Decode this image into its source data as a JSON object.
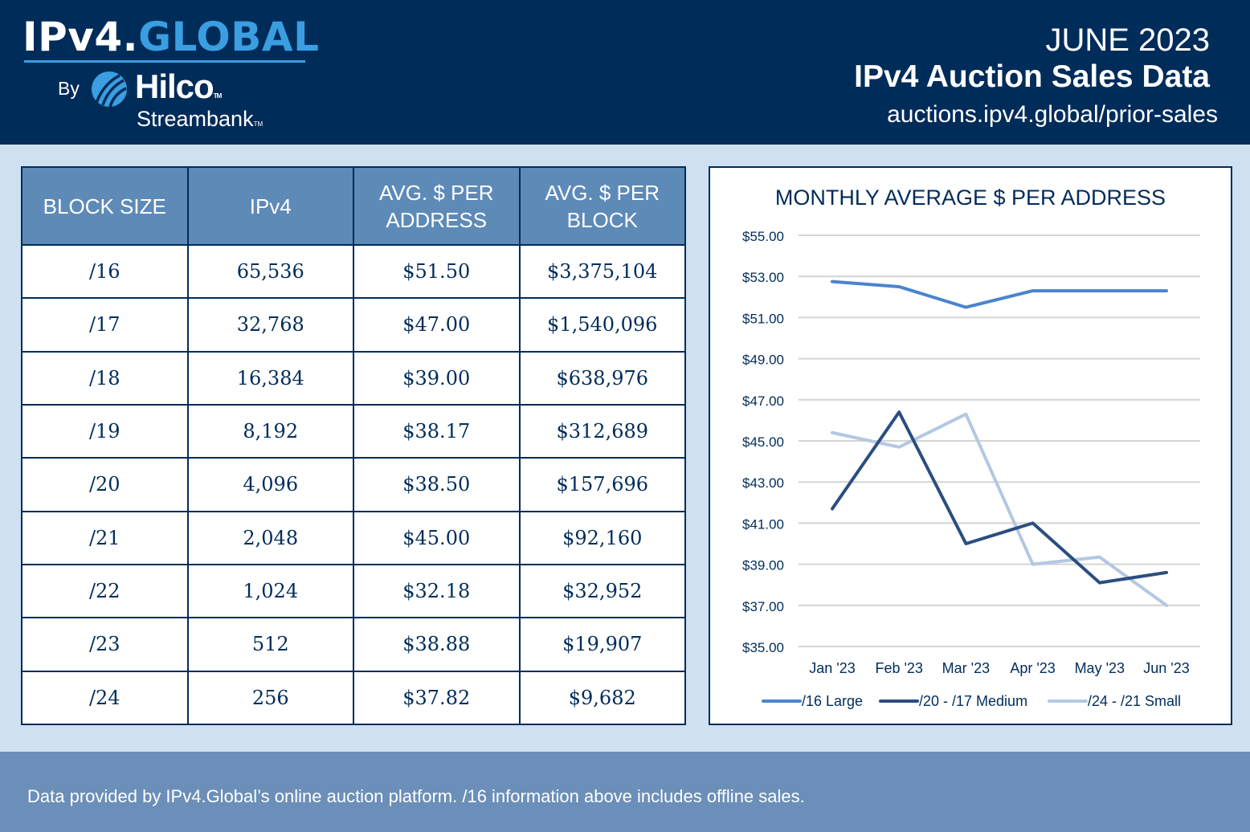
{
  "header": {
    "logo_ipv4": "IPv4.",
    "logo_global": "GLOBAL",
    "logo_by": "By",
    "logo_hilco": "Hilco",
    "logo_streambank": "Streambank",
    "tm": "TM",
    "date": "JUNE 2023",
    "title": "IPv4 Auction Sales Data",
    "url": "auctions.ipv4.global/prior-sales"
  },
  "table": {
    "headers": [
      "BLOCK SIZE",
      "IPv4",
      "AVG. $ PER ADDRESS",
      "AVG. $ PER BLOCK"
    ],
    "rows": [
      [
        "/16",
        "65,536",
        "$51.50",
        "$3,375,104"
      ],
      [
        "/17",
        "32,768",
        "$47.00",
        "$1,540,096"
      ],
      [
        "/18",
        "16,384",
        "$39.00",
        "$638,976"
      ],
      [
        "/19",
        "8,192",
        "$38.17",
        "$312,689"
      ],
      [
        "/20",
        "4,096",
        "$38.50",
        "$157,696"
      ],
      [
        "/21",
        "2,048",
        "$45.00",
        "$92,160"
      ],
      [
        "/22",
        "1,024",
        "$32.18",
        "$32,952"
      ],
      [
        "/23",
        "512",
        "$38.88",
        "$19,907"
      ],
      [
        "/24",
        "256",
        "$37.82",
        "$9,682"
      ]
    ]
  },
  "chart_data": {
    "type": "line",
    "title": "MONTHLY AVERAGE $ PER ADDRESS",
    "categories": [
      "Jan '23",
      "Feb '23",
      "Mar '23",
      "Apr '23",
      "May '23",
      "Jun '23"
    ],
    "ylim": [
      35,
      55
    ],
    "yticks": [
      "$55.00",
      "$53.00",
      "$51.00",
      "$49.00",
      "$47.00",
      "$45.00",
      "$43.00",
      "$41.00",
      "$39.00",
      "$37.00",
      "$35.00"
    ],
    "ytick_values": [
      55,
      53,
      51,
      49,
      47,
      45,
      43,
      41,
      39,
      37,
      35
    ],
    "grid": "horizontal",
    "legend_position": "bottom",
    "series": [
      {
        "name": "/16 Large",
        "color": "#4a84cf",
        "values": [
          52.75,
          52.5,
          51.5,
          52.3,
          52.3,
          52.3
        ]
      },
      {
        "name": "/20 - /17 Medium",
        "color": "#2b4e80",
        "values": [
          41.7,
          46.4,
          40.0,
          41.0,
          38.1,
          38.6
        ]
      },
      {
        "name": "/24 - /21 Small",
        "color": "#b3c8e2",
        "values": [
          45.4,
          44.7,
          46.3,
          39.0,
          39.35,
          37.0
        ]
      }
    ]
  },
  "footer": {
    "note": "Data provided by IPv4.Global’s online auction platform. /16 information above includes offline sales."
  }
}
